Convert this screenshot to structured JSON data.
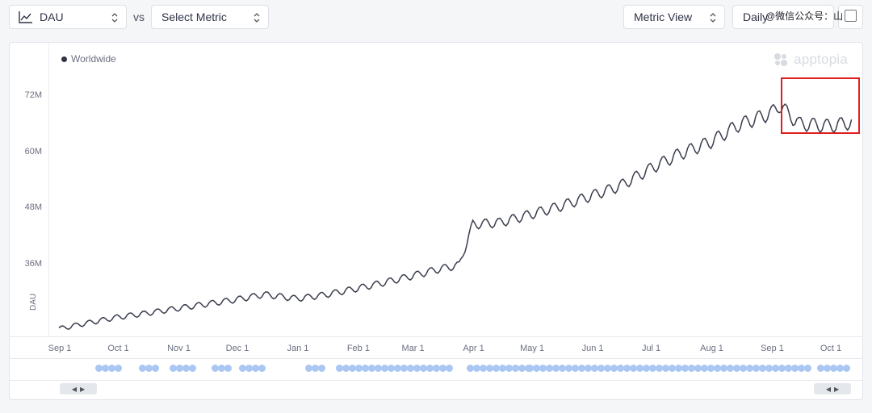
{
  "toolbar": {
    "primary_metric": "DAU",
    "vs_label": "vs",
    "secondary_metric": "Select Metric",
    "view": "Metric View",
    "granularity": "Daily"
  },
  "brand": {
    "name": "apptopia"
  },
  "watermark": {
    "text": "@微信公众号：山"
  },
  "colors": {
    "line": "#3a3d4d",
    "event_dot": "#a9c7f2",
    "highlight": "#e01e1e"
  },
  "chart_data": {
    "type": "line",
    "title": "",
    "xlabel": "",
    "ylabel": "DAU",
    "legend": {
      "position": "top-left",
      "entries": [
        "Worldwide"
      ]
    },
    "grid": false,
    "ylim": [
      21000000,
      82000000
    ],
    "y_ticks": [
      {
        "value": 36000000,
        "label": "36M"
      },
      {
        "value": 48000000,
        "label": "48M"
      },
      {
        "value": 60000000,
        "label": "60M"
      },
      {
        "value": 72000000,
        "label": "72M"
      }
    ],
    "x_ticks": [
      "Sep 1",
      "Oct 1",
      "Nov 1",
      "Dec 1",
      "Jan 1",
      "Feb 1",
      "Mar 1",
      "Apr 1",
      "May 1",
      "Jun 1",
      "Jul 1",
      "Aug 1",
      "Sep 1",
      "Oct 1"
    ],
    "x_range": [
      "Sep 1",
      "Oct 12"
    ],
    "x": [
      "Sep 1",
      "Sep 15",
      "Oct 1",
      "Oct 15",
      "Nov 1",
      "Nov 15",
      "Dec 1",
      "Dec 15",
      "Jan 1",
      "Jan 15",
      "Feb 1",
      "Feb 15",
      "Mar 1",
      "Mar 15",
      "Mar 25",
      "Apr 1",
      "Apr 15",
      "May 1",
      "May 15",
      "Jun 1",
      "Jun 15",
      "Jul 1",
      "Jul 15",
      "Aug 1",
      "Aug 15",
      "Sep 1",
      "Sep 5",
      "Sep 15",
      "Oct 1",
      "Oct 12"
    ],
    "series": [
      {
        "name": "Worldwide",
        "values": [
          22.3,
          23.5,
          24.8,
          25.6,
          26.7,
          27.6,
          28.6,
          29.7,
          28.8,
          29.6,
          31.0,
          32.3,
          33.7,
          35.2,
          36.0,
          44.8,
          45.2,
          47.0,
          48.6,
          51.0,
          53.0,
          56.8,
          59.8,
          62.6,
          66.2,
          68.8,
          70.5,
          66.5,
          66.0,
          66.8
        ],
        "unit": "M"
      }
    ],
    "highlight": {
      "from": "Sep 5",
      "to": "Oct 12",
      "label": ""
    }
  }
}
